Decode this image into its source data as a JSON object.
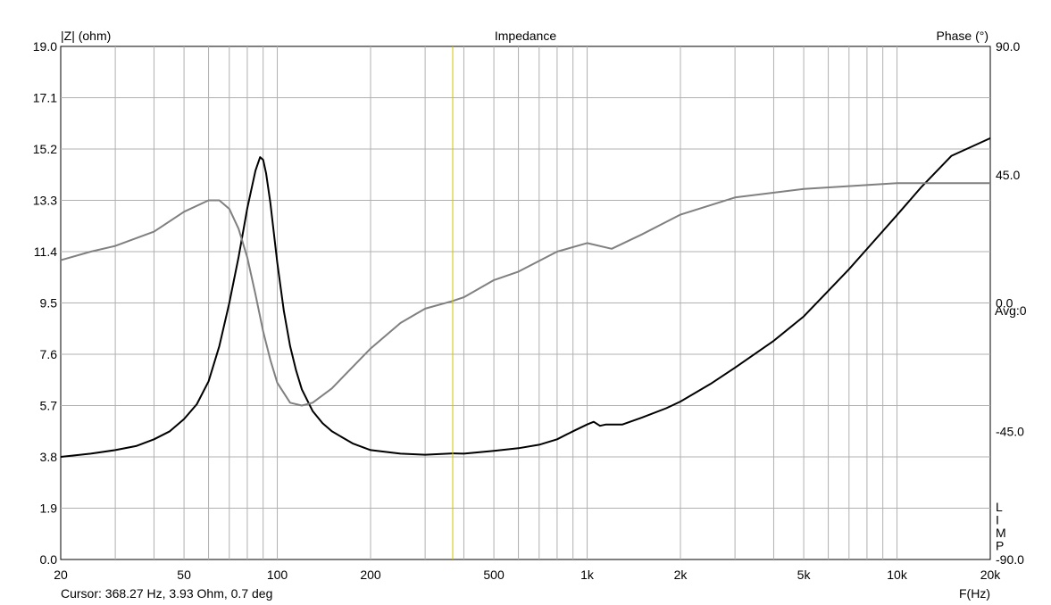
{
  "chart_data": {
    "type": "line",
    "title": "Impedance",
    "xlabel": "F(Hz)",
    "ylabel": "|Z| (ohm)",
    "y2label": "Phase (°)",
    "x_scale": "log",
    "xlim": [
      20,
      20000
    ],
    "ylim": [
      0,
      19
    ],
    "y2lim": [
      -90,
      90
    ],
    "grid": true,
    "x_ticks": [
      {
        "value": 20,
        "label": "20"
      },
      {
        "value": 50,
        "label": "50"
      },
      {
        "value": 100,
        "label": "100"
      },
      {
        "value": 200,
        "label": "200"
      },
      {
        "value": 500,
        "label": "500"
      },
      {
        "value": 1000,
        "label": "1k"
      },
      {
        "value": 2000,
        "label": "2k"
      },
      {
        "value": 5000,
        "label": "5k"
      },
      {
        "value": 10000,
        "label": "10k"
      },
      {
        "value": 20000,
        "label": "20k"
      }
    ],
    "y_ticks": [
      {
        "value": 0,
        "label": "0.0"
      },
      {
        "value": 1.9,
        "label": "1.9"
      },
      {
        "value": 3.8,
        "label": "3.8"
      },
      {
        "value": 5.7,
        "label": "5.7"
      },
      {
        "value": 7.6,
        "label": "7.6"
      },
      {
        "value": 9.5,
        "label": "9.5"
      },
      {
        "value": 11.4,
        "label": "11.4"
      },
      {
        "value": 13.3,
        "label": "13.3"
      },
      {
        "value": 15.2,
        "label": "15.2"
      },
      {
        "value": 17.1,
        "label": "17.1"
      },
      {
        "value": 19.0,
        "label": "19.0"
      }
    ],
    "y2_ticks": [
      {
        "value": 90,
        "label": "90.0"
      },
      {
        "value": 45,
        "label": "45.0"
      },
      {
        "value": 0,
        "label": "0.0"
      },
      {
        "value": -45,
        "label": "-45.0"
      },
      {
        "value": -90,
        "label": "-90.0"
      }
    ],
    "avg_label": "Avg:0",
    "side_letters": [
      "L",
      "I",
      "M",
      "P"
    ],
    "cursor": {
      "x": 368.27,
      "color": "#d4c400"
    },
    "series": [
      {
        "axis": "left",
        "color": "#000000",
        "x": [
          20,
          25,
          30,
          35,
          40,
          45,
          50,
          55,
          60,
          65,
          70,
          75,
          80,
          85,
          88,
          90,
          92,
          95,
          100,
          105,
          110,
          115,
          120,
          130,
          140,
          150,
          175,
          200,
          250,
          300,
          368.27,
          400,
          500,
          600,
          700,
          800,
          900,
          1000,
          1050,
          1100,
          1150,
          1200,
          1300,
          1500,
          1800,
          2000,
          2500,
          3000,
          4000,
          5000,
          6000,
          7000,
          8000,
          10000,
          12000,
          15000,
          20000
        ],
        "y": [
          3.8,
          3.92,
          4.05,
          4.2,
          4.45,
          4.75,
          5.2,
          5.75,
          6.6,
          7.9,
          9.5,
          11.2,
          13.0,
          14.4,
          14.9,
          14.8,
          14.3,
          13.2,
          11.0,
          9.2,
          7.9,
          7.0,
          6.3,
          5.5,
          5.05,
          4.75,
          4.3,
          4.05,
          3.92,
          3.88,
          3.93,
          3.92,
          4.02,
          4.12,
          4.25,
          4.45,
          4.75,
          5.0,
          5.1,
          4.95,
          5.0,
          5.0,
          5.0,
          5.25,
          5.6,
          5.85,
          6.5,
          7.1,
          8.1,
          9.0,
          9.95,
          10.75,
          11.5,
          12.75,
          13.8,
          14.95,
          15.6
        ]
      },
      {
        "axis": "right",
        "color": "#808080",
        "x": [
          20,
          25,
          30,
          40,
          50,
          60,
          65,
          70,
          75,
          80,
          85,
          90,
          95,
          100,
          110,
          120,
          130,
          150,
          200,
          250,
          300,
          368.27,
          400,
          500,
          600,
          800,
          1000,
          1200,
          1500,
          2000,
          3000,
          5000,
          10000,
          20000
        ],
        "y": [
          15,
          18,
          20,
          25,
          32,
          36,
          36,
          33,
          26,
          16,
          3,
          -10,
          -20,
          -28,
          -35,
          -36,
          -35,
          -30,
          -16,
          -7,
          -2,
          0.7,
          2,
          8,
          11,
          18,
          21,
          19,
          24,
          31,
          37,
          40,
          42,
          42
        ]
      }
    ]
  },
  "readout": "Cursor: 368.27 Hz, 3.93 Ohm, 0.7 deg"
}
